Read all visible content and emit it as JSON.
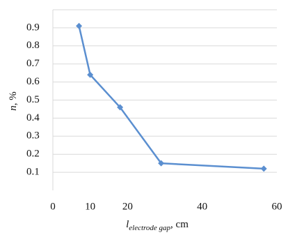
{
  "chart_data": {
    "type": "line",
    "y_label": {
      "symbol": "n",
      "unit": ", %"
    },
    "x_label": {
      "symbol": "l",
      "subscript": "electrode gap",
      "unit": ", cm"
    },
    "x": [
      7,
      10,
      18,
      29,
      56.5
    ],
    "series": [
      {
        "color": "#5b8fd0",
        "values": [
          0.91,
          0.64,
          0.46,
          0.15,
          0.12
        ]
      }
    ],
    "xlim": [
      0,
      60
    ],
    "xticks": [
      0,
      10,
      20,
      40,
      60
    ],
    "ylim": [
      0,
      1.0
    ],
    "yticks": [
      0.1,
      0.2,
      0.3,
      0.4,
      0.5,
      0.6,
      0.7,
      0.8,
      0.9
    ],
    "grid": true
  }
}
